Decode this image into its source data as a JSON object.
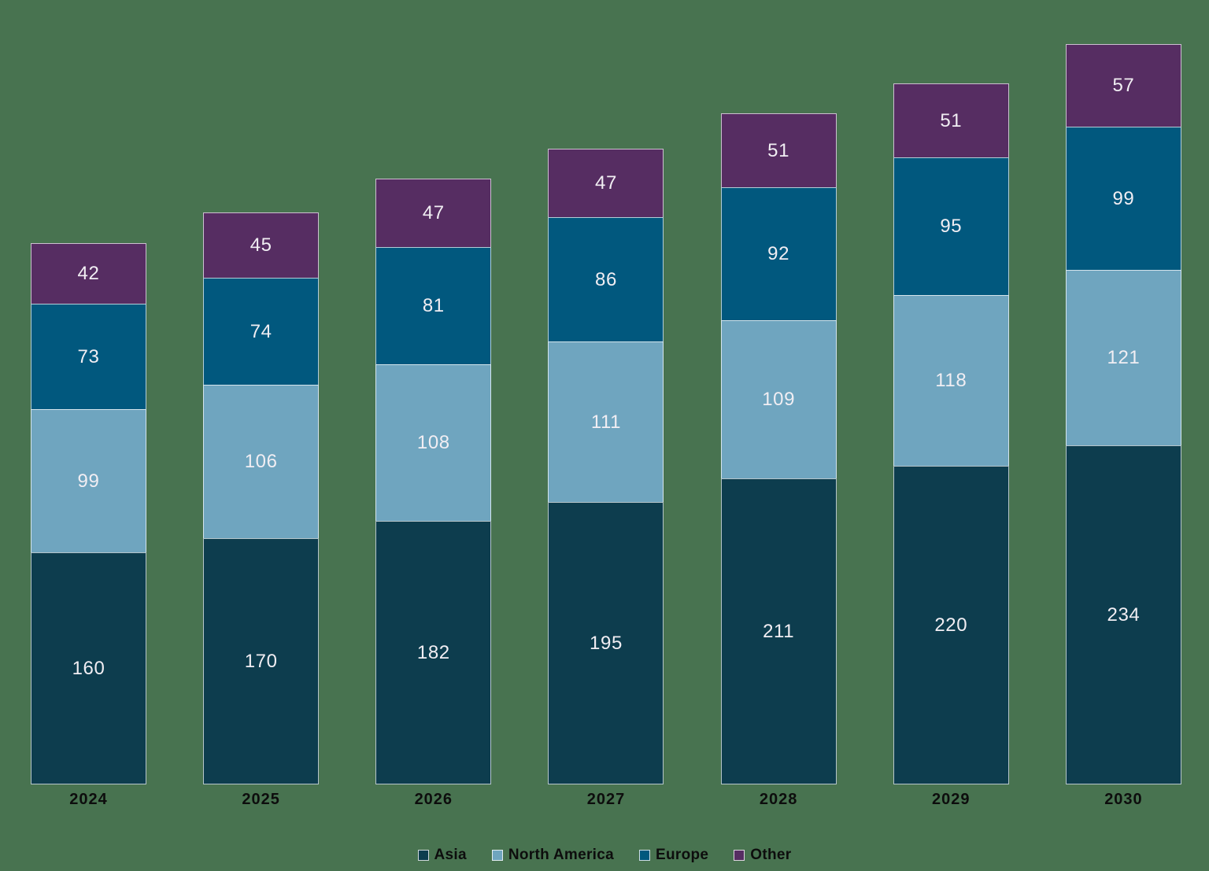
{
  "chart_data": {
    "type": "bar",
    "variant": "stacked-vertical",
    "title": "",
    "xlabel": "",
    "ylabel": "",
    "grid": false,
    "axes_visible": false,
    "ylim": [
      0,
      540
    ],
    "categories": [
      "2024",
      "2025",
      "2026",
      "2027",
      "2028",
      "2029",
      "2030"
    ],
    "series": [
      {
        "name": "Asia",
        "color": "#0d3d4e",
        "values": [
          160,
          170,
          182,
          195,
          211,
          220,
          234
        ]
      },
      {
        "name": "North America",
        "color": "#6fa5bf",
        "values": [
          99,
          106,
          108,
          111,
          109,
          118,
          121
        ]
      },
      {
        "name": "Europe",
        "color": "#01587e",
        "values": [
          73,
          74,
          81,
          86,
          92,
          95,
          99
        ]
      },
      {
        "name": "Other",
        "color": "#562d62",
        "values": [
          42,
          45,
          47,
          47,
          51,
          51,
          57
        ]
      }
    ],
    "totals": [
      374,
      395,
      418,
      439,
      463,
      484,
      511
    ],
    "value_labels": "inside-center",
    "legend": {
      "position": "bottom-center",
      "items": [
        "Asia",
        "North America",
        "Europe",
        "Other"
      ]
    },
    "colors": {
      "background": "#487350",
      "value_label": "#f1eef3",
      "axis_tick_label": "#0d0d0d",
      "legend_label": "#0d0d0d",
      "bar_outline": "#ffffff"
    }
  }
}
